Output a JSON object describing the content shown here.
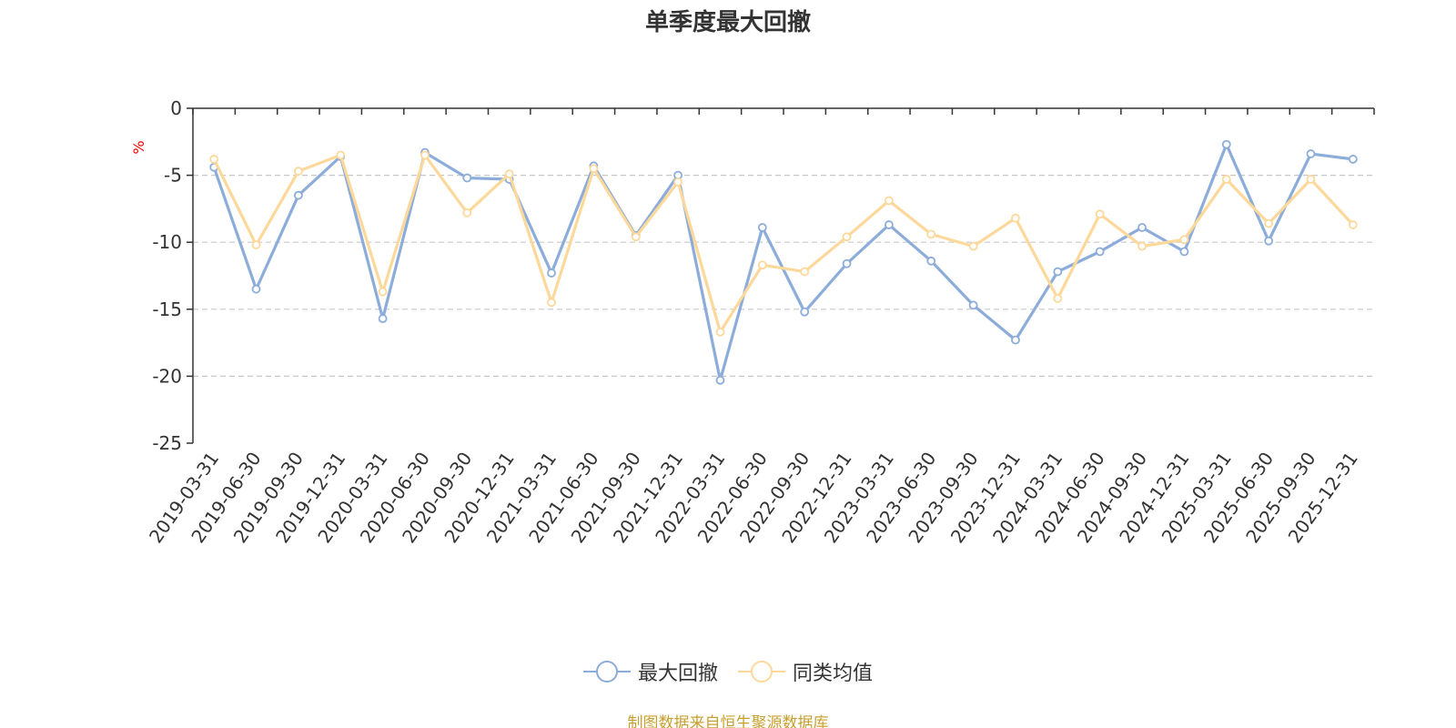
{
  "chart_data": {
    "type": "line",
    "title": "单季度最大回撤",
    "ylabel": "%",
    "xlabel": "",
    "ylim": [
      -25,
      0
    ],
    "yticks": [
      0,
      -5,
      -10,
      -15,
      -20,
      -25
    ],
    "grid": true,
    "legend_position": "bottom-center",
    "categories": [
      "2019-03-31",
      "2019-06-30",
      "2019-09-30",
      "2019-12-31",
      "2020-03-31",
      "2020-06-30",
      "2020-09-30",
      "2020-12-31",
      "2021-03-31",
      "2021-06-30",
      "2021-09-30",
      "2021-12-31",
      "2022-03-31",
      "2022-06-30",
      "2022-09-30",
      "2022-12-31",
      "2023-03-31",
      "2023-06-30",
      "2023-09-30",
      "2023-12-31",
      "2024-03-31",
      "2024-06-30",
      "2024-09-30",
      "2024-12-31",
      "2025-03-31",
      "2025-06-30",
      "2025-09-30",
      "2025-12-31"
    ],
    "series": [
      {
        "name": "最大回撤",
        "color": "#8cacd9",
        "values": [
          -4.4,
          -13.5,
          -6.5,
          -3.6,
          -15.7,
          -3.3,
          -5.2,
          -5.3,
          -12.3,
          -4.3,
          -9.5,
          -5.0,
          -20.3,
          -8.9,
          -15.2,
          -11.6,
          -8.7,
          -11.4,
          -14.7,
          -17.3,
          -12.2,
          -10.7,
          -8.9,
          -10.7,
          -2.7,
          -9.9,
          -3.4,
          -3.8
        ]
      },
      {
        "name": "同类均值",
        "color": "#fcd89a",
        "values": [
          -3.8,
          -10.2,
          -4.7,
          -3.5,
          -13.7,
          -3.5,
          -7.8,
          -4.9,
          -14.5,
          -4.5,
          -9.6,
          -5.5,
          -16.7,
          -11.7,
          -12.2,
          -9.6,
          -6.9,
          -9.4,
          -10.3,
          -8.2,
          -14.2,
          -7.9,
          -10.3,
          -9.8,
          -5.3,
          -8.6,
          -5.3,
          -8.7
        ]
      }
    ]
  },
  "source": {
    "text": "制图数据来自恒生聚源数据库",
    "color": "#c8a030"
  }
}
